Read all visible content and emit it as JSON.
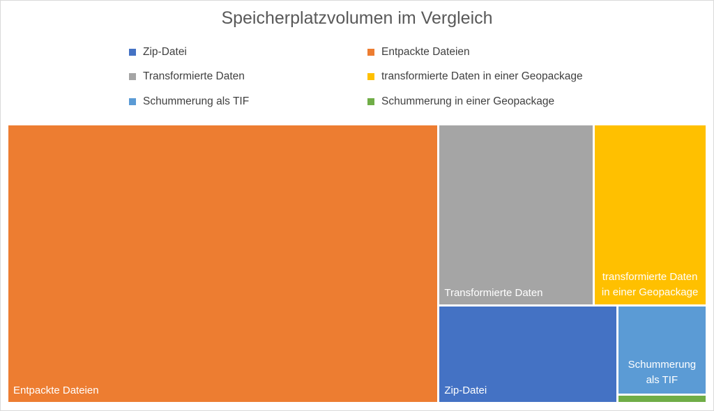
{
  "chart_data": {
    "type": "treemap",
    "title": "Speicherplatzvolumen im Vergleich",
    "legend_position": "top",
    "value_note": "relative sizes estimated from tile areas",
    "series": [
      {
        "name": "Zip-Datei",
        "value": 35,
        "color": "#4472C4",
        "label": "Zip-Datei"
      },
      {
        "name": "Entpackte Dateien",
        "value": 242,
        "color": "#ED7D31",
        "label": "Entpackte Dateien"
      },
      {
        "name": "Transformierte Daten",
        "value": 57,
        "color": "#A5A5A5",
        "label": "Transformierte Daten"
      },
      {
        "name": "transformierte Daten in einer Geopackage",
        "value": 41,
        "color": "#FFC000",
        "label": "transformierte Daten in einer Geopackage"
      },
      {
        "name": "Schummerung als TIF",
        "value": 16,
        "color": "#5B9BD5",
        "label": "Schummerung als TIF"
      },
      {
        "name": "Schummerung in einer Geopackage",
        "value": 1.3,
        "color": "#70AD47",
        "label": ""
      }
    ]
  }
}
